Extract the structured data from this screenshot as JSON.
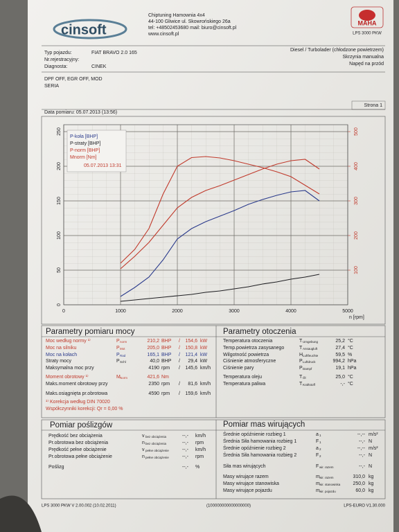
{
  "header": {
    "logo": "cinsoft",
    "company": [
      "Chiptuning Hamownia 4x4",
      "44-100 Gliwice ul. Skowrońskiego 26a",
      "tel: +48502453680 mail: biuro@cinsoft.pl",
      "www.cinsoft.pl"
    ],
    "brand": "MAHA",
    "model": "LPS 3000 PKW",
    "engine_info": [
      "Diesel / Turbolader (chłodzone powietrzem)",
      "Skrzynia manualna",
      "Napęd na przód"
    ]
  },
  "vehicle": {
    "rows": [
      [
        "Typ pojazdu:",
        "FIAT BRAVO 2.0 165"
      ],
      [
        "Nr.rejestracyjny:"
      ],
      [
        "Diagnosta:",
        "CINEK"
      ]
    ],
    "notes": [
      "DPF OFF, EGR OFF, MOD",
      "SERIA"
    ]
  },
  "page_label": "Strona 1",
  "measurement_date": "Data pomiaru: 05.07.2013 (13:56)",
  "chart_data": {
    "type": "line",
    "x_label": "n [rpm]",
    "run_label": "05.07.2013 13:31",
    "x": [
      1000,
      1250,
      1500,
      1750,
      2000,
      2250,
      2500,
      2750,
      3000,
      3250,
      3500,
      3750,
      4000,
      4250,
      4500
    ],
    "xlim": [
      0,
      5000
    ],
    "xticks": [
      0,
      1000,
      2000,
      3000,
      4000,
      5000
    ],
    "ylim": [
      0,
      260
    ],
    "yticks": [
      0,
      50,
      100,
      150,
      200,
      250
    ],
    "y2lim": [
      0,
      520
    ],
    "y2ticks": [
      100,
      200,
      300,
      400,
      500
    ],
    "grid": true,
    "legend": "upper left",
    "series": [
      {
        "name": "P-koła [BHP]",
        "color": "#2b3b8c",
        "values": [
          12,
          25,
          40,
          65,
          95,
          110,
          120,
          128,
          136,
          145,
          152,
          158,
          163,
          165,
          150
        ]
      },
      {
        "name": "P-straty [BHP]",
        "color": "#1e1e22",
        "values": [
          5,
          7,
          9,
          11,
          13,
          15,
          18,
          20,
          23,
          26,
          30,
          33,
          37,
          40,
          44
        ]
      },
      {
        "name": "P-norm [BHP]",
        "color": "#c0392b",
        "values": [
          52,
          70,
          90,
          115,
          140,
          155,
          165,
          172,
          180,
          188,
          196,
          203,
          208,
          210,
          196
        ]
      },
      {
        "name": "Mnorm [Nm]",
        "color": "#c0392b",
        "axis": "y2",
        "values": [
          120,
          160,
          220,
          320,
          400,
          425,
          428,
          424,
          416,
          406,
          396,
          384,
          370,
          345,
          320
        ]
      }
    ]
  },
  "power": {
    "title": "Parametry pomiaru mocy",
    "rows": [
      {
        "label": "Moc według normy ¹⁾",
        "sym": "P",
        "sub": "norm",
        "v1": "210,2",
        "u1": "BHP",
        "sep": "/",
        "v2": "154,6",
        "u2": "kW",
        "color": "#c0392b"
      },
      {
        "label": "Moc na silniku",
        "sym": "P",
        "sub": "Mot",
        "v1": "205,0",
        "u1": "BHP",
        "sep": "/",
        "v2": "150,8",
        "u2": "kW",
        "color": "#c0392b"
      },
      {
        "label": "Moc na kołach",
        "sym": "P",
        "sub": "Rad",
        "v1": "165,1",
        "u1": "BHP",
        "sep": "/",
        "v2": "121,4",
        "u2": "kW",
        "color": "#2b3b8c"
      },
      {
        "label": "Straty mocy",
        "sym": "P",
        "sub": "Schl",
        "v1": "40,0",
        "u1": "BHP",
        "sep": "/",
        "v2": "29,4",
        "u2": "kW"
      },
      {
        "label": "Maksymalna moc przy",
        "v1": "4190",
        "u1": "rpm",
        "sep": "/",
        "v2": "145,6",
        "u2": "km/h"
      },
      {
        "label": "Moment obrotowy ¹⁾",
        "sym": "M",
        "sub": "Norm",
        "v1": "421,6",
        "u1": "Nm",
        "color": "#c0392b"
      },
      {
        "label": "Maks.moment obrotowy przy",
        "v1": "2350",
        "u1": "rpm",
        "sep": "/",
        "v2": "81,6",
        "u2": "km/h"
      },
      {
        "label": "Maks.osiągnięta pr.obrotowa",
        "v1": "4590",
        "u1": "rpm",
        "sep": "/",
        "v2": "159,6",
        "u2": "km/h"
      }
    ],
    "notes": [
      "¹⁾ Korekcja według DIN 70020",
      "Współczynniki korekcji: Qr = 0,00 %"
    ],
    "notes_color": "#c0392b"
  },
  "ambient": {
    "title": "Parametry otoczenia",
    "rows": [
      {
        "label": "Temperatura otoczenia",
        "sym": "T",
        "sub": "Umgebung",
        "v1": "25,2",
        "u1": "°C"
      },
      {
        "label": "Temp.powietrza zasysanego",
        "sym": "T",
        "sub": "Ansaugluft",
        "v1": "27,4",
        "u1": "°C"
      },
      {
        "label": "Wilgotność powietrza",
        "sym": "H",
        "sub": "Luftfeuchte",
        "v1": "59,5",
        "u1": "%"
      },
      {
        "label": "Ciśnienie atmosferyczne",
        "sym": "P",
        "sub": "Luftdruck",
        "v1": "994,2",
        "u1": "hPa"
      },
      {
        "label": "Ciśnienie pary",
        "sym": "P",
        "sub": "Dampf",
        "v1": "19,1",
        "u1": "hPa"
      },
      {
        "label": "Temperatura oleju",
        "sym": "T",
        "sub": "Öl",
        "v1": "25,0",
        "u1": "°C"
      },
      {
        "label": "Temperatura paliwa",
        "sym": "T",
        "sub": "Kraftstoff",
        "v1": "-,-",
        "u1": "°C"
      }
    ]
  },
  "slip": {
    "title": "Pomiar poślizgów",
    "rows": [
      {
        "label": "Prędkość bez obciążenia",
        "sym": "v",
        "sub": "bez obciążenia",
        "v1": "--,-",
        "u1": "km/h"
      },
      {
        "label": "Pr.obrotowa bez obciążenia",
        "sym": "n",
        "sub": "bez obciążenia",
        "v1": "--,-",
        "u1": "rpm"
      },
      {
        "label": "Prędkość pełne obciążenie",
        "sym": "v",
        "sub": "pełne obciążenie",
        "v1": "--,-",
        "u1": "km/h"
      },
      {
        "label": "Pr.obrotowa pełne obciążenie",
        "sym": "n",
        "sub": "pełne obciążenie",
        "v1": "--,-",
        "u1": "rpm"
      },
      {
        "label": "Poślizg",
        "v1": "--,-",
        "u1": "%"
      }
    ]
  },
  "masses": {
    "title": "Pomiar mas wirujących",
    "rows": [
      {
        "label": "Średnie opóźnienie rozbieg 1",
        "sym": "a",
        "sub": "1",
        "v1": "--,--",
        "u1": "m/s²"
      },
      {
        "label": "Średnia Siła hamowania rozbieg 1",
        "sym": "F",
        "sub": "1",
        "v1": "--,-",
        "u1": "N"
      },
      {
        "label": "Średnie opóźnienie rozbieg 2",
        "sym": "a",
        "sub": "2",
        "v1": "--,--",
        "u1": "m/s²"
      },
      {
        "label": "Średnia Siła hamowania rozbieg 2",
        "sym": "F",
        "sub": "2",
        "v1": "--,-",
        "u1": "N"
      },
      {
        "label": "Siła mas wirujących",
        "sym": "F",
        "sub": "wir. razem",
        "v1": "--,-",
        "u1": "N"
      },
      {
        "label": "Masy wirujące razem",
        "sym": "m",
        "sub": "wir. razem",
        "v1": "310,0",
        "u1": "kg"
      },
      {
        "label": "Masy wirujące stanowiska",
        "sym": "m",
        "sub": "wir. stanowiska",
        "v1": "250,0",
        "u1": "kg"
      },
      {
        "label": "Masy wirujące pojazdu",
        "sym": "m",
        "sub": "wir. pojazdu",
        "v1": "60,0",
        "u1": "kg"
      }
    ]
  },
  "footer": [
    "LPS 3000 PKW V 2.00.002 (10.02.2011)",
    "(100000000000000000)",
    "LPS-EURO V1.30.000"
  ]
}
